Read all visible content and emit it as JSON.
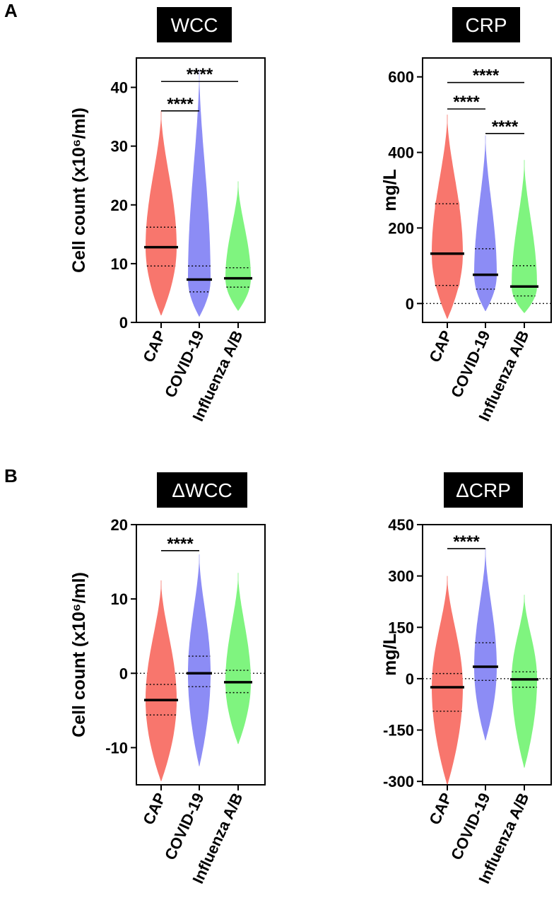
{
  "panels": [
    {
      "letter": "A"
    },
    {
      "letter": "B"
    }
  ],
  "colors": {
    "CAP": "#f8766d",
    "COVID-19": "#8c8cf5",
    "Influenza A/B": "#7ff47f",
    "title_bg": "#000000"
  },
  "chart_data": [
    {
      "type": "violin",
      "panel": "A",
      "title": "WCC",
      "ylabel": "Cell count (x10⁶/ml)",
      "ylim": [
        0,
        45
      ],
      "yticks": [
        0,
        10,
        20,
        30,
        40
      ],
      "zero_line": false,
      "categories": [
        "CAP",
        "COVID-19",
        "Influenza A/B"
      ],
      "series": [
        {
          "category": "CAP",
          "median": 12.8,
          "q1": 9.6,
          "q3": 16.2,
          "min": 1.2,
          "max": 36
        },
        {
          "category": "COVID-19",
          "median": 7.3,
          "q1": 5.2,
          "q3": 9.6,
          "min": 1.0,
          "max": 43
        },
        {
          "category": "Influenza A/B",
          "median": 7.5,
          "q1": 6.0,
          "q3": 9.3,
          "min": 2.0,
          "max": 24
        }
      ],
      "significance": [
        {
          "from": "CAP",
          "to": "COVID-19",
          "y": 36,
          "label": "****"
        },
        {
          "from": "CAP",
          "to": "Influenza A/B",
          "y": 41,
          "label": "****"
        }
      ]
    },
    {
      "type": "violin",
      "panel": "A",
      "title": "CRP",
      "ylabel": "mg/L",
      "ylim": [
        -50,
        650
      ],
      "yticks": [
        0,
        200,
        400,
        600
      ],
      "zero_line": true,
      "categories": [
        "CAP",
        "COVID-19",
        "Influenza A/B"
      ],
      "series": [
        {
          "category": "CAP",
          "median": 132,
          "q1": 48,
          "q3": 264,
          "min": -40,
          "max": 500
        },
        {
          "category": "COVID-19",
          "median": 76,
          "q1": 38,
          "q3": 145,
          "min": -20,
          "max": 445
        },
        {
          "category": "Influenza A/B",
          "median": 45,
          "q1": 20,
          "q3": 100,
          "min": -25,
          "max": 380
        }
      ],
      "significance": [
        {
          "from": "CAP",
          "to": "COVID-19",
          "y": 515,
          "label": "****"
        },
        {
          "from": "CAP",
          "to": "Influenza A/B",
          "y": 585,
          "label": "****"
        },
        {
          "from": "COVID-19",
          "to": "Influenza A/B",
          "y": 450,
          "label": "****"
        }
      ]
    },
    {
      "type": "violin",
      "panel": "B",
      "title": "ΔWCC",
      "ylabel": "Cell count (x10⁶/ml)",
      "ylim": [
        -15,
        20
      ],
      "yticks": [
        -10,
        0,
        10,
        20
      ],
      "zero_line": true,
      "categories": [
        "CAP",
        "COVID-19",
        "Influenza A/B"
      ],
      "series": [
        {
          "category": "CAP",
          "median": -3.6,
          "q1": -5.6,
          "q3": -1.5,
          "min": -14.5,
          "max": 12.5
        },
        {
          "category": "COVID-19",
          "median": 0.0,
          "q1": -1.8,
          "q3": 2.3,
          "min": -12.5,
          "max": 16
        },
        {
          "category": "Influenza A/B",
          "median": -1.2,
          "q1": -2.6,
          "q3": 0.4,
          "min": -9.5,
          "max": 13.5
        }
      ],
      "significance": [
        {
          "from": "CAP",
          "to": "COVID-19",
          "y": 16.5,
          "label": "****"
        }
      ]
    },
    {
      "type": "violin",
      "panel": "B",
      "title": "ΔCRP",
      "ylabel": "mg/L",
      "ylim": [
        -310,
        450
      ],
      "yticks": [
        -300,
        -150,
        0,
        150,
        300,
        450
      ],
      "zero_line": true,
      "categories": [
        "CAP",
        "COVID-19",
        "Influenza A/B"
      ],
      "series": [
        {
          "category": "CAP",
          "median": -25,
          "q1": -95,
          "q3": 15,
          "min": -310,
          "max": 300
        },
        {
          "category": "COVID-19",
          "median": 35,
          "q1": -5,
          "q3": 105,
          "min": -180,
          "max": 380
        },
        {
          "category": "Influenza A/B",
          "median": -2,
          "q1": -25,
          "q3": 20,
          "min": -260,
          "max": 245
        }
      ],
      "significance": [
        {
          "from": "CAP",
          "to": "COVID-19",
          "y": 380,
          "label": "****"
        }
      ]
    }
  ]
}
